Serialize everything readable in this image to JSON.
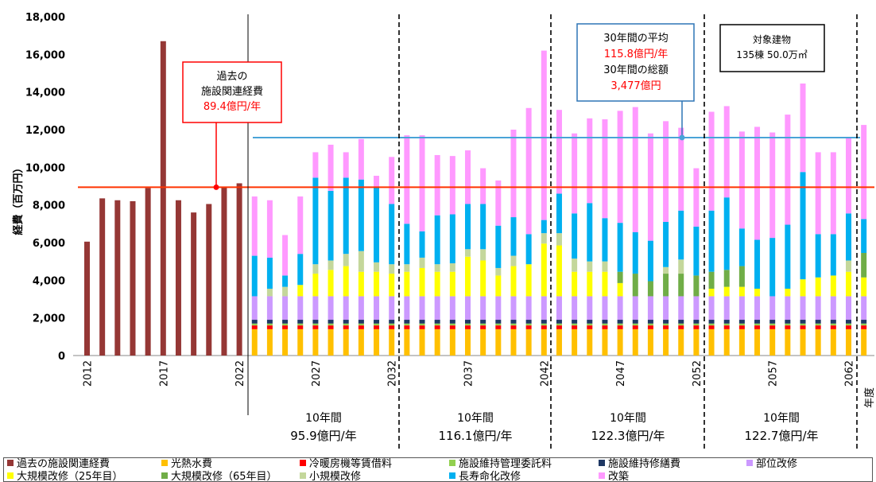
{
  "chart_data": {
    "type": "bar",
    "stacked": true,
    "ylabel": "経費（百万円）",
    "xlabel": "年度",
    "ylim": [
      0,
      18000
    ],
    "yticks": [
      "0",
      "2,000",
      "4,000",
      "6,000",
      "8,000",
      "10,000",
      "12,000",
      "14,000",
      "16,000",
      "18,000"
    ],
    "x_tick_labels": [
      "2012",
      "2017",
      "2022",
      "2027",
      "2032",
      "2037",
      "2042",
      "2047",
      "2052",
      "2057",
      "2062"
    ],
    "x_tick_years": [
      2012,
      2017,
      2022,
      2027,
      2032,
      2037,
      2042,
      2047,
      2052,
      2057,
      2062
    ],
    "years": [
      2012,
      2013,
      2014,
      2015,
      2016,
      2017,
      2018,
      2019,
      2020,
      2021,
      2022,
      2023,
      2024,
      2025,
      2026,
      2027,
      2028,
      2029,
      2030,
      2031,
      2032,
      2033,
      2034,
      2035,
      2036,
      2037,
      2038,
      2039,
      2040,
      2041,
      2042,
      2043,
      2044,
      2045,
      2046,
      2047,
      2048,
      2049,
      2050,
      2051,
      2052,
      2053,
      2054,
      2055,
      2056,
      2057,
      2058,
      2059,
      2060,
      2061,
      2062,
      2063
    ],
    "past": [
      6050,
      8350,
      8250,
      8200,
      8900,
      16700,
      8250,
      7600,
      8050,
      8950,
      9150
    ],
    "projected_totals": [
      8450,
      8250,
      6400,
      8450,
      10800,
      11200,
      10800,
      11500,
      9550,
      10550,
      11700,
      11700,
      10650,
      10600,
      10900,
      9950,
      9300,
      12000,
      13150,
      16200,
      13050,
      11800,
      12600,
      12550,
      13000,
      13200,
      11800,
      12450,
      12100,
      9950,
      12950,
      13250,
      11900,
      12150,
      11850,
      12800,
      14450,
      10800,
      10800,
      11550,
      12250
    ],
    "series": [
      {
        "name": "過去の施設関連経費",
        "color": "#953735"
      },
      {
        "name": "光熱水費",
        "color": "#ffc000",
        "values": [
          1400
        ]
      },
      {
        "name": "冷暖房機等賃借料",
        "color": "#ff0000",
        "values": [
          200
        ]
      },
      {
        "name": "施設維持管理委託料",
        "color": "#92d050",
        "values": [
          100
        ]
      },
      {
        "name": "施設維持修繕費",
        "color": "#1f3864",
        "values": [
          200
        ]
      },
      {
        "name": "部位改修",
        "color": "#cc99ff",
        "values": [
          1250,
          1250,
          1250,
          1250,
          1250,
          1250,
          1250,
          1250,
          1250,
          1250,
          1250,
          1250,
          1250,
          1250,
          1250,
          1250,
          1250,
          1250,
          1250,
          1250,
          1250,
          1250,
          1250,
          1250,
          1250,
          1250,
          1250,
          1250,
          1250,
          1250,
          1250,
          1250,
          1250,
          1250,
          1250,
          1250,
          1250,
          1250,
          1250,
          1250,
          1250
        ]
      },
      {
        "name": "大規模改修（25年目）",
        "color": "#ffff00",
        "values": [
          0,
          0,
          0,
          600,
          1200,
          1400,
          1600,
          1300,
          1300,
          1200,
          1300,
          1500,
          1300,
          1300,
          2100,
          1900,
          1100,
          1600,
          1700,
          2800,
          2700,
          1300,
          1300,
          1300,
          700,
          0,
          0,
          0,
          0,
          0,
          400,
          500,
          500,
          400,
          0,
          400,
          900,
          1000,
          1100,
          1300,
          1000
        ]
      },
      {
        "name": "大規模改修（65年目）",
        "color": "#70ad47",
        "values": [
          0,
          0,
          0,
          0,
          0,
          0,
          0,
          0,
          0,
          0,
          0,
          0,
          0,
          0,
          0,
          0,
          0,
          0,
          0,
          0,
          0,
          0,
          0,
          0,
          600,
          1200,
          800,
          1200,
          1200,
          1100,
          900,
          900,
          1100,
          0,
          0,
          0,
          0,
          0,
          0,
          0,
          1300
        ]
      },
      {
        "name": "小規模改修",
        "color": "#c4d79b",
        "values": [
          0,
          400,
          500,
          0,
          500,
          500,
          650,
          1100,
          500,
          500,
          400,
          550,
          400,
          450,
          400,
          600,
          400,
          550,
          0,
          550,
          650,
          700,
          550,
          550,
          0,
          0,
          0,
          350,
          750,
          0,
          0,
          0,
          0,
          0,
          0,
          0,
          0,
          0,
          0,
          600,
          0
        ]
      },
      {
        "name": "長寿命化改修",
        "color": "#00b0f0",
        "values": [
          2150,
          1650,
          600,
          1650,
          4600,
          3700,
          4050,
          3800,
          4000,
          3200,
          2150,
          1400,
          2600,
          2600,
          2400,
          2400,
          2250,
          2050,
          1600,
          700,
          2100,
          2400,
          3100,
          2300,
          2600,
          2200,
          2150,
          2400,
          2600,
          2600,
          3250,
          3850,
          2000,
          2600,
          3100,
          3400,
          5700,
          2300,
          2200,
          2500,
          1800
        ]
      },
      {
        "name": "改築",
        "color": "#ff99ff"
      }
    ],
    "avg_line_past": 8940,
    "avg_line_projected": 11580,
    "annotations": {
      "past_label": "過去の",
      "past_label2": "施設関連経費",
      "past_value": "89.4億円/年",
      "avg_title": "30年間の平均",
      "avg_value": "115.8億円/年",
      "total_title": "30年間の総額",
      "total_value": "3,477億円",
      "target_title": "対象建物",
      "target_value": "135棟  50.0万㎡"
    },
    "decades": [
      {
        "label": "10年間",
        "value": "95.9億円/年"
      },
      {
        "label": "10年間",
        "value": "116.1億円/年"
      },
      {
        "label": "10年間",
        "value": "122.3億円/年"
      },
      {
        "label": "10年間",
        "value": "122.7億円/年"
      }
    ],
    "grid": false,
    "legend_position": "bottom"
  }
}
